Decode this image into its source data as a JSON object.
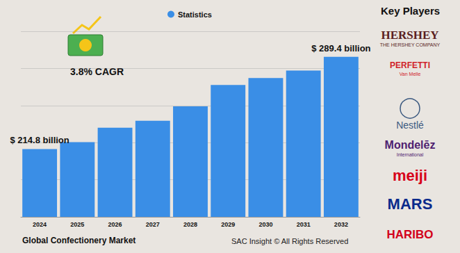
{
  "chart_data": {
    "type": "bar",
    "title": "Global Confectionery Market",
    "categories": [
      "2024",
      "2025",
      "2026",
      "2027",
      "2028",
      "2029",
      "2030",
      "2031",
      "2032"
    ],
    "series": [
      {
        "name": "Statistics",
        "color": "#3a8ee6",
        "values": [
          214.8,
          220.4,
          232.1,
          237.6,
          249.3,
          266.6,
          272.2,
          278.3,
          289.4
        ],
        "value_labels": [
          "$ 214.8 billion",
          null,
          null,
          null,
          null,
          null,
          null,
          null,
          "$ 289.4 billion"
        ]
      }
    ],
    "ylim": [
      160,
      310
    ],
    "yticks": [
      160,
      190,
      220,
      250,
      280,
      310
    ],
    "grid": true,
    "tick_labels": "x",
    "data_labels": true,
    "legend": "top",
    "annotations": [
      "3.8% CAGR",
      "SAC Insight © All Rights Reserved"
    ],
    "key_players_title": "Key Players",
    "key_players": [
      {
        "name": "HERSHEY",
        "subtitle": "THE HERSHEY COMPANY"
      },
      {
        "name": "PERFETTI",
        "subtitle": "Van Melle"
      },
      {
        "name": "Nestlé"
      },
      {
        "name": "Mondelēz",
        "subtitle": "International"
      },
      {
        "name": "meiji"
      },
      {
        "name": "MARS"
      },
      {
        "name": "HARIBO"
      }
    ]
  }
}
